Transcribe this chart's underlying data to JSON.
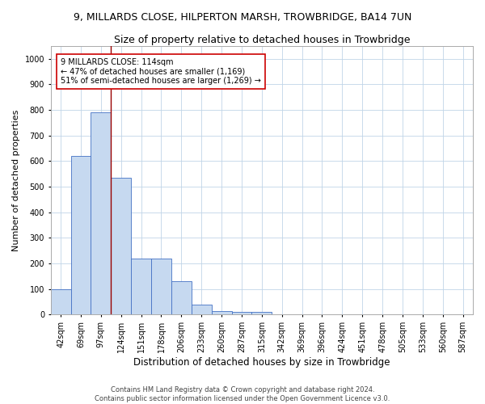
{
  "title": "9, MILLARDS CLOSE, HILPERTON MARSH, TROWBRIDGE, BA14 7UN",
  "subtitle": "Size of property relative to detached houses in Trowbridge",
  "xlabel": "Distribution of detached houses by size in Trowbridge",
  "ylabel": "Number of detached properties",
  "categories": [
    "42sqm",
    "69sqm",
    "97sqm",
    "124sqm",
    "151sqm",
    "178sqm",
    "206sqm",
    "233sqm",
    "260sqm",
    "287sqm",
    "315sqm",
    "342sqm",
    "369sqm",
    "396sqm",
    "424sqm",
    "451sqm",
    "478sqm",
    "505sqm",
    "533sqm",
    "560sqm",
    "587sqm"
  ],
  "values": [
    100,
    620,
    790,
    535,
    220,
    220,
    130,
    40,
    15,
    10,
    10,
    0,
    0,
    0,
    0,
    0,
    0,
    0,
    0,
    0,
    0
  ],
  "bar_color": "#c6d9f0",
  "bar_edge_color": "#4472c4",
  "vline_x": 2.5,
  "vline_color": "#990000",
  "annotation_text": "9 MILLARDS CLOSE: 114sqm\n← 47% of detached houses are smaller (1,169)\n51% of semi-detached houses are larger (1,269) →",
  "annotation_box_color": "#ffffff",
  "annotation_box_edge": "#cc0000",
  "ylim": [
    0,
    1050
  ],
  "yticks": [
    0,
    100,
    200,
    300,
    400,
    500,
    600,
    700,
    800,
    900,
    1000
  ],
  "footer1": "Contains HM Land Registry data © Crown copyright and database right 2024.",
  "footer2": "Contains public sector information licensed under the Open Government Licence v3.0.",
  "bg_color": "#ffffff",
  "grid_color": "#c0d4e8",
  "title_fontsize": 9,
  "subtitle_fontsize": 9,
  "ylabel_fontsize": 8,
  "xlabel_fontsize": 8.5,
  "tick_fontsize": 7,
  "annot_fontsize": 7,
  "footer_fontsize": 6
}
